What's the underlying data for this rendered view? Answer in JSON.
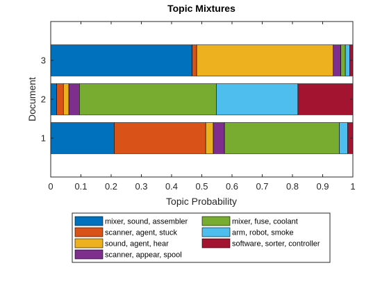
{
  "chart_data": {
    "type": "bar",
    "orientation": "horizontal",
    "stacked": true,
    "title": "Topic Mixtures",
    "xlabel": "Topic Probability",
    "ylabel": "Document",
    "xlim": [
      0,
      1
    ],
    "xticks": [
      0,
      0.1,
      0.2,
      0.3,
      0.4,
      0.5,
      0.6,
      0.7,
      0.8,
      0.9,
      1
    ],
    "xtick_labels": [
      "0",
      "0.1",
      "0.2",
      "0.3",
      "0.4",
      "0.5",
      "0.6",
      "0.7",
      "0.8",
      "0.9",
      "1"
    ],
    "ylim": [
      0,
      4
    ],
    "categories": [
      "1",
      "2",
      "3"
    ],
    "grid": false,
    "legend_placement": "bottom-outside",
    "series": [
      {
        "name": "mixer, sound, assembler",
        "color": "#0072BD",
        "values": [
          0.21,
          0.02,
          0.468
        ]
      },
      {
        "name": "scanner, agent, stuck",
        "color": "#D95319",
        "values": [
          0.303,
          0.022,
          0.015
        ]
      },
      {
        "name": "sound, agent, hear",
        "color": "#EDB120",
        "values": [
          0.025,
          0.018,
          0.452
        ]
      },
      {
        "name": "scanner, appear, spool",
        "color": "#7E2F8E",
        "values": [
          0.037,
          0.035,
          0.025
        ]
      },
      {
        "name": "mixer, fuse, coolant",
        "color": "#77AC30",
        "values": [
          0.38,
          0.453,
          0.015
        ]
      },
      {
        "name": "arm, robot, smoke",
        "color": "#4DBEEE",
        "values": [
          0.028,
          0.27,
          0.015
        ]
      },
      {
        "name": "software, sorter, controller",
        "color": "#A2142F",
        "values": [
          0.017,
          0.182,
          0.01
        ]
      }
    ]
  }
}
